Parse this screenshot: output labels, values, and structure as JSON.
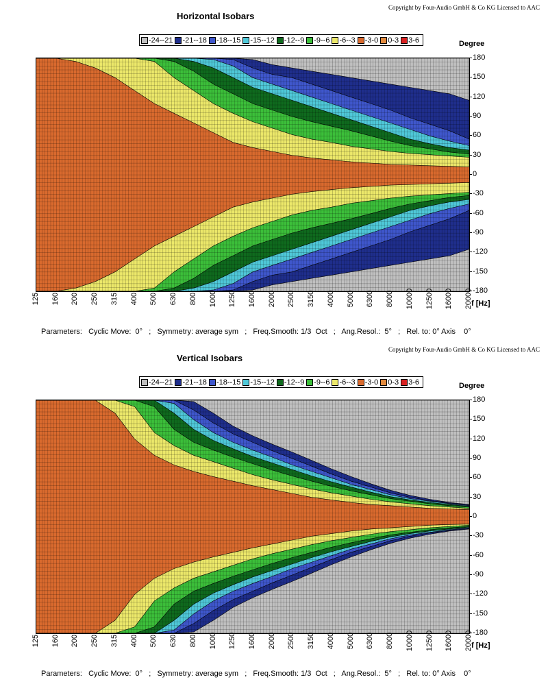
{
  "panels": [
    {
      "copyright": "Copyright by Four-Audio GmbH & Co KG   Licensed to AAC",
      "title": "Horizontal Isobars",
      "y_title": "Degree",
      "x_unit": "f [Hz]",
      "parameters": "Parameters:   Cyclic Move:  0°   ;   Symmetry: average sym   ;   Freq.Smooth: 1/3  Oct   ;   Ang.Resol.:  5°   ;   Rel. to: 0° Axis    0°"
    },
    {
      "copyright": "Copyright by Four-Audio GmbH & Co KG   Licensed to AAC",
      "title": "Vertical Isobars",
      "y_title": "Degree",
      "x_unit": "f [Hz]",
      "parameters": "Parameters:   Cyclic Move:  0°   ;   Symmetry: average sym   ;   Freq.Smooth: 1/3  Oct   ;   Ang.Resol.:  5°   ;   Rel. to: 0° Axis    0°"
    }
  ],
  "legend": [
    {
      "label": "-24--21",
      "color": "#c0c0c0"
    },
    {
      "label": "-21--18",
      "color": "#1f2e8c"
    },
    {
      "label": "-18--15",
      "color": "#3f57cc"
    },
    {
      "label": "-15--12",
      "color": "#4fc8d8"
    },
    {
      "label": "-12--9",
      "color": "#0f6a1e"
    },
    {
      "label": "-9--6",
      "color": "#3cbf3a"
    },
    {
      "label": "-6--3",
      "color": "#ece86a"
    },
    {
      "label": "-3-0",
      "color": "#d96a2e"
    },
    {
      "label": "0-3",
      "color": "#e28a3e"
    },
    {
      "label": "3-6",
      "color": "#d82020"
    }
  ],
  "chart_data": [
    {
      "type": "heatmap",
      "title": "Horizontal Isobars",
      "xlabel": "f [Hz]",
      "ylabel": "Degree",
      "x_scale": "log",
      "x_ticks": [
        "125",
        "160",
        "200",
        "250",
        "315",
        "400",
        "500",
        "630",
        "800",
        "1000",
        "1250",
        "1600",
        "2000",
        "2500",
        "3150",
        "4000",
        "5000",
        "6300",
        "8000",
        "10000",
        "12500",
        "16000",
        "20000"
      ],
      "y_ticks": [
        "180",
        "150",
        "120",
        "90",
        "60",
        "30",
        "0",
        "-30",
        "-60",
        "-90",
        "-120",
        "-150",
        "-180"
      ],
      "ylim": [
        -180,
        180
      ],
      "grid": true,
      "contours_deg": [
        {
          "level": "-3",
          "angle": [
            180,
            180,
            175,
            165,
            150,
            130,
            110,
            95,
            80,
            65,
            50,
            42,
            36,
            30,
            26,
            23,
            20,
            18,
            16,
            15,
            14,
            13,
            12
          ]
        },
        {
          "level": "-6",
          "angle": [
            180,
            180,
            180,
            180,
            180,
            180,
            175,
            150,
            130,
            110,
            95,
            82,
            72,
            62,
            55,
            50,
            44,
            40,
            36,
            33,
            31,
            29,
            27
          ]
        },
        {
          "level": "-9",
          "angle": [
            180,
            180,
            180,
            180,
            180,
            180,
            180,
            175,
            160,
            140,
            125,
            110,
            100,
            90,
            82,
            75,
            68,
            60,
            52,
            45,
            40,
            35,
            32
          ]
        },
        {
          "level": "-12",
          "angle": [
            180,
            180,
            180,
            180,
            180,
            180,
            180,
            180,
            175,
            165,
            150,
            135,
            125,
            115,
            105,
            95,
            85,
            75,
            65,
            55,
            48,
            42,
            38
          ]
        },
        {
          "level": "-15",
          "angle": [
            180,
            180,
            180,
            180,
            180,
            180,
            180,
            180,
            180,
            178,
            168,
            150,
            140,
            130,
            120,
            110,
            100,
            90,
            80,
            70,
            60,
            52,
            45
          ]
        },
        {
          "level": "-18",
          "angle": [
            180,
            180,
            180,
            180,
            180,
            180,
            180,
            180,
            180,
            180,
            178,
            165,
            155,
            150,
            140,
            130,
            120,
            110,
            100,
            88,
            78,
            68,
            55
          ]
        },
        {
          "level": "-21",
          "angle": [
            180,
            180,
            180,
            180,
            180,
            180,
            180,
            180,
            180,
            180,
            180,
            178,
            170,
            165,
            160,
            155,
            150,
            145,
            140,
            135,
            130,
            125,
            115
          ]
        }
      ]
    },
    {
      "type": "heatmap",
      "title": "Vertical Isobars",
      "xlabel": "f [Hz]",
      "ylabel": "Degree",
      "x_scale": "log",
      "x_ticks": [
        "125",
        "160",
        "200",
        "250",
        "315",
        "400",
        "500",
        "630",
        "800",
        "1000",
        "1250",
        "1600",
        "2000",
        "2500",
        "3150",
        "4000",
        "5000",
        "6300",
        "8000",
        "10000",
        "12500",
        "16000",
        "20000"
      ],
      "y_ticks": [
        "180",
        "150",
        "120",
        "90",
        "60",
        "30",
        "0",
        "-30",
        "-60",
        "-90",
        "-120",
        "-150",
        "-180"
      ],
      "ylim": [
        -180,
        180
      ],
      "grid": true,
      "contours_deg": [
        {
          "level": "-3",
          "angle": [
            180,
            180,
            180,
            180,
            160,
            120,
            95,
            80,
            70,
            62,
            55,
            48,
            42,
            36,
            30,
            26,
            22,
            19,
            17,
            15,
            13,
            12,
            11
          ]
        },
        {
          "level": "-6",
          "angle": [
            180,
            180,
            180,
            180,
            180,
            170,
            130,
            110,
            95,
            85,
            75,
            65,
            57,
            50,
            43,
            37,
            32,
            27,
            23,
            20,
            17,
            15,
            13
          ]
        },
        {
          "level": "-9",
          "angle": [
            180,
            180,
            180,
            180,
            180,
            180,
            170,
            135,
            115,
            103,
            92,
            82,
            72,
            63,
            55,
            47,
            40,
            34,
            28,
            24,
            20,
            17,
            15
          ]
        },
        {
          "level": "-12",
          "angle": [
            180,
            180,
            180,
            180,
            180,
            180,
            180,
            160,
            135,
            118,
            105,
            93,
            83,
            73,
            63,
            54,
            46,
            38,
            31,
            26,
            22,
            19,
            16
          ]
        },
        {
          "level": "-15",
          "angle": [
            180,
            180,
            180,
            180,
            180,
            180,
            180,
            175,
            150,
            130,
            115,
            103,
            92,
            80,
            70,
            60,
            50,
            42,
            34,
            28,
            24,
            20,
            17
          ]
        },
        {
          "level": "-18",
          "angle": [
            180,
            180,
            180,
            180,
            180,
            180,
            180,
            180,
            165,
            145,
            128,
            115,
            102,
            90,
            78,
            66,
            55,
            46,
            37,
            30,
            25,
            21,
            18
          ]
        },
        {
          "level": "-21",
          "angle": [
            180,
            180,
            180,
            180,
            180,
            180,
            180,
            180,
            178,
            160,
            140,
            125,
            112,
            100,
            87,
            74,
            62,
            51,
            41,
            33,
            27,
            22,
            19
          ]
        }
      ]
    }
  ]
}
